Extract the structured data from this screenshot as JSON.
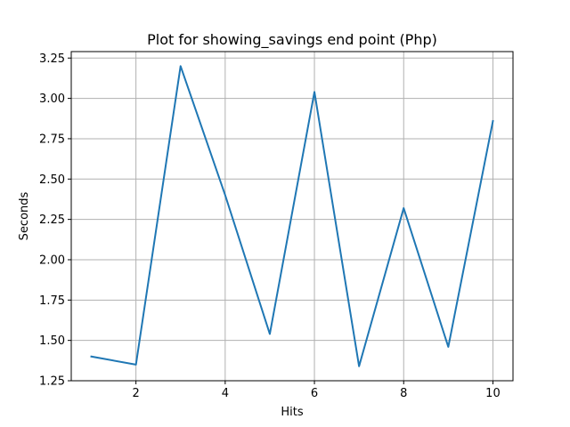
{
  "chart_data": {
    "type": "line",
    "title": "Plot for showing_savings end point (Php)",
    "xlabel": "Hits",
    "ylabel": "Seconds",
    "x": [
      1,
      2,
      3,
      4,
      5,
      6,
      7,
      8,
      9,
      10
    ],
    "series": [
      {
        "values": [
          1.4,
          1.35,
          3.2,
          2.4,
          1.54,
          3.04,
          1.34,
          2.32,
          1.46,
          2.86
        ],
        "color": "#1f77b4"
      }
    ],
    "xlim": [
      0.55,
      10.45
    ],
    "ylim": [
      1.25,
      3.29
    ],
    "xticks": [
      2,
      4,
      6,
      8,
      10
    ],
    "xtick_labels": [
      "2",
      "4",
      "6",
      "8",
      "10"
    ],
    "yticks": [
      1.25,
      1.5,
      1.75,
      2.0,
      2.25,
      2.5,
      2.75,
      3.0,
      3.25
    ],
    "ytick_labels": [
      "1.25",
      "1.50",
      "1.75",
      "2.00",
      "2.25",
      "2.50",
      "2.75",
      "3.00",
      "3.25"
    ],
    "grid": true,
    "grid_color": "#b0b0b0"
  }
}
